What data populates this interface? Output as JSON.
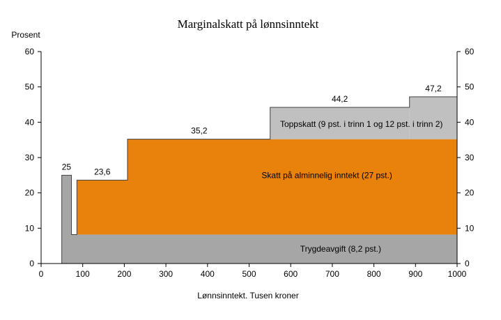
{
  "chart_data": {
    "type": "area",
    "title": "Marginalskatt på lønnsinntekt",
    "ylabel": "Prosent",
    "xlabel": "Lønnsinntekt. Tusen kroner",
    "xlim": [
      0,
      1000
    ],
    "ylim": [
      0,
      60
    ],
    "x_ticks": [
      "0",
      "100",
      "200",
      "300",
      "400",
      "500",
      "600",
      "700",
      "800",
      "900",
      "1000"
    ],
    "y_ticks": [
      "0",
      "10",
      "20",
      "30",
      "40",
      "50",
      "60"
    ],
    "y_axes": "left and right",
    "grid": false,
    "colors": {
      "trygdeavgift": "#a6a6a6",
      "skatt": "#e8820b",
      "toppskatt": "#c0c0c0",
      "outline": "#404040"
    },
    "total_line": [
      {
        "x": 0,
        "y": 0
      },
      {
        "x": 49.65,
        "y": 0
      },
      {
        "x": 49.65,
        "y": 25
      },
      {
        "x": 72.9,
        "y": 25
      },
      {
        "x": 72.9,
        "y": 8.2
      },
      {
        "x": 86,
        "y": 8.2
      },
      {
        "x": 86,
        "y": 23.6
      },
      {
        "x": 207.7,
        "y": 23.6
      },
      {
        "x": 207.7,
        "y": 35.2
      },
      {
        "x": 550.6,
        "y": 35.2
      },
      {
        "x": 550.6,
        "y": 44.2
      },
      {
        "x": 885.6,
        "y": 44.2
      },
      {
        "x": 885.6,
        "y": 47.2
      },
      {
        "x": 1000,
        "y": 47.2
      }
    ],
    "series": [
      {
        "name": "Trygdeavgift (8,2 pst.)",
        "segments": [
          {
            "x0": 49.65,
            "x1": 72.9,
            "y0": 0,
            "y1": 25
          },
          {
            "x0": 72.9,
            "x1": 1000,
            "y0": 0,
            "y1": 8.2
          }
        ]
      },
      {
        "name": "Skatt på alminnelig inntekt (27 pst.)",
        "segments": [
          {
            "x0": 86,
            "x1": 207.7,
            "y0": 8.2,
            "y1": 23.6
          },
          {
            "x0": 207.7,
            "x1": 1000,
            "y0": 8.2,
            "y1": 35.2
          }
        ]
      },
      {
        "name": "Toppskatt (9 pst. i trinn 1 og 12 pst. i trinn 2)",
        "segments": [
          {
            "x0": 550.6,
            "x1": 885.6,
            "y0": 35.2,
            "y1": 44.2
          },
          {
            "x0": 885.6,
            "x1": 1000,
            "y0": 35.2,
            "y1": 47.2
          }
        ]
      }
    ],
    "value_labels": [
      {
        "text": "25",
        "x": 61,
        "y": 25
      },
      {
        "text": "23,6",
        "x": 147,
        "y": 23.6
      },
      {
        "text": "35,2",
        "x": 380,
        "y": 35.2
      },
      {
        "text": "44,2",
        "x": 718,
        "y": 44.2
      },
      {
        "text": "47,2",
        "x": 943,
        "y": 47.2
      }
    ],
    "band_labels": [
      {
        "text": "Trygdeavgift (8,2 pst.)",
        "x": 720,
        "y": 4.1
      },
      {
        "text": "Skatt på alminnelig inntekt (27 pst.)",
        "x": 687,
        "y": 25
      },
      {
        "text": "Toppskatt (9 pst. i trinn 1 og 12 pst. i trinn 2)",
        "x": 770,
        "y": 39.5
      }
    ]
  }
}
